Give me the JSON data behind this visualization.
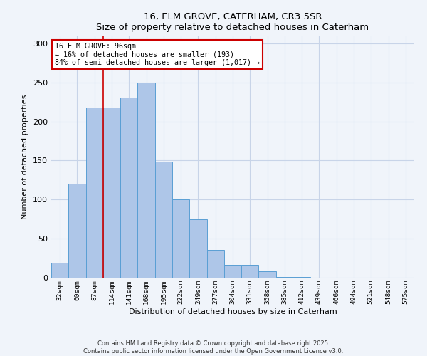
{
  "title": "16, ELM GROVE, CATERHAM, CR3 5SR",
  "subtitle": "Size of property relative to detached houses in Caterham",
  "xlabel": "Distribution of detached houses by size in Caterham",
  "ylabel": "Number of detached properties",
  "bar_labels": [
    "32sqm",
    "60sqm",
    "87sqm",
    "114sqm",
    "141sqm",
    "168sqm",
    "195sqm",
    "222sqm",
    "249sqm",
    "277sqm",
    "304sqm",
    "331sqm",
    "358sqm",
    "385sqm",
    "412sqm",
    "439sqm",
    "466sqm",
    "494sqm",
    "521sqm",
    "548sqm",
    "575sqm"
  ],
  "bar_values": [
    19,
    120,
    218,
    218,
    231,
    250,
    149,
    100,
    75,
    36,
    16,
    16,
    8,
    1,
    1,
    0,
    0,
    0,
    0,
    0,
    0
  ],
  "bar_color": "#aec6e8",
  "bar_edge_color": "#5a9fd4",
  "vline_x_index": 2,
  "vline_color": "#cc0000",
  "annotation_title": "16 ELM GROVE: 96sqm",
  "annotation_line1": "← 16% of detached houses are smaller (193)",
  "annotation_line2": "84% of semi-detached houses are larger (1,017) →",
  "annotation_box_color": "#cc0000",
  "ylim": [
    0,
    310
  ],
  "yticks": [
    0,
    50,
    100,
    150,
    200,
    250,
    300
  ],
  "footer1": "Contains HM Land Registry data © Crown copyright and database right 2025.",
  "footer2": "Contains public sector information licensed under the Open Government Licence v3.0.",
  "bg_color": "#f0f4fa",
  "grid_color": "#c8d4e8"
}
